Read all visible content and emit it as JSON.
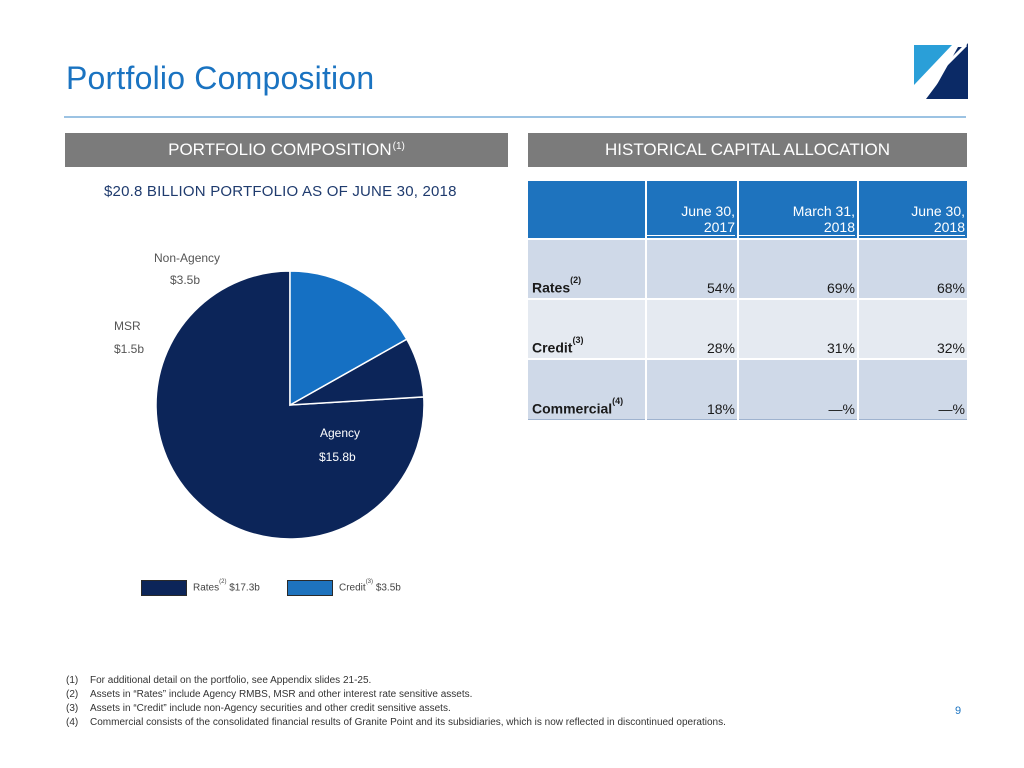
{
  "page": {
    "title": "Portfolio Composition",
    "page_number": "9"
  },
  "left_section": {
    "header": "PORTFOLIO COMPOSITION",
    "header_note": "(1)",
    "heading": "$20.8 BILLION PORTFOLIO AS OF JUNE 30, 2018"
  },
  "right_section": {
    "header": "HISTORICAL CAPITAL ALLOCATION"
  },
  "chart_data": {
    "type": "pie",
    "slices": [
      {
        "name": "Agency",
        "value_label": "$15.8b",
        "value": 15.8,
        "color": "#0c2559"
      },
      {
        "name": "MSR",
        "value_label": "$1.5b",
        "value": 1.5,
        "color": "#0c2559"
      },
      {
        "name": "Non-Agency",
        "value_label": "$3.5b",
        "value": 3.5,
        "color": "#1570c3"
      }
    ],
    "legend": [
      {
        "label": "Rates",
        "note": "(2)",
        "amount": "$17.3b",
        "color": "#0c2559"
      },
      {
        "label": "Credit",
        "note": "(3)",
        "amount": "$3.5b",
        "color": "#1e73be"
      }
    ]
  },
  "table": {
    "columns": [
      {
        "line1": "June 30,",
        "line2": "2017"
      },
      {
        "line1": "March 31,",
        "line2": "2018"
      },
      {
        "line1": "June 30,",
        "line2": "2018"
      }
    ],
    "rows": [
      {
        "label": "Rates",
        "note": "(2)",
        "values": [
          "54%",
          "69%",
          "68%"
        ]
      },
      {
        "label": "Credit",
        "note": "(3)",
        "values": [
          "28%",
          "31%",
          "32%"
        ]
      },
      {
        "label": "Commercial",
        "note": "(4)",
        "values": [
          "18%",
          "—%",
          "—%"
        ]
      }
    ]
  },
  "footnotes": [
    {
      "num": "(1)",
      "text": "For additional detail on the portfolio, see Appendix slides 21-25."
    },
    {
      "num": "(2)",
      "text": "Assets in “Rates” include Agency RMBS, MSR and other interest rate sensitive assets."
    },
    {
      "num": "(3)",
      "text": "Assets in “Credit” include non-Agency securities and other credit sensitive assets."
    },
    {
      "num": "(4)",
      "text": "Commercial consists of the consolidated financial results of Granite Point and its subsidiaries, which is now reflected in discontinued operations."
    }
  ]
}
